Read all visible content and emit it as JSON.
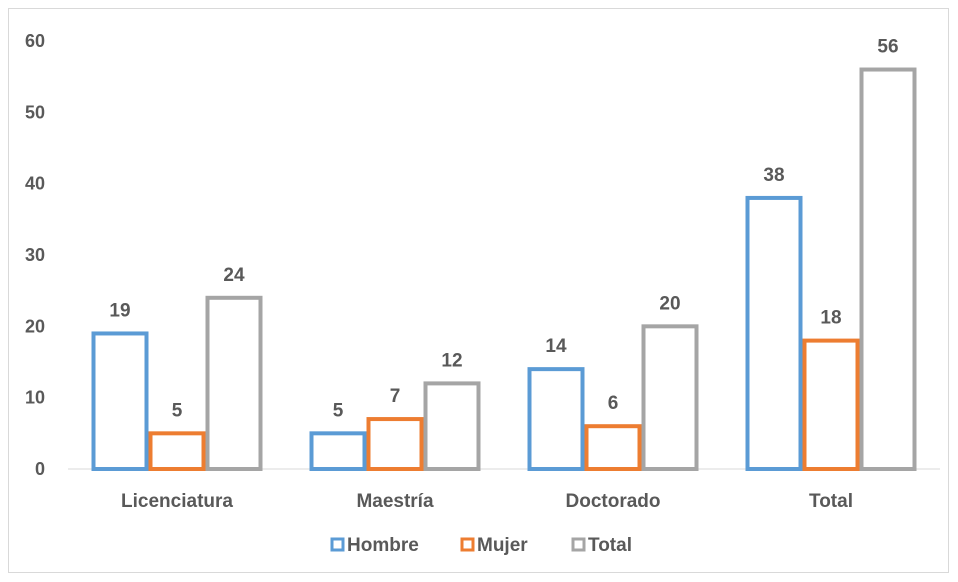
{
  "chart_data": {
    "type": "bar",
    "categories": [
      "Licenciatura",
      "Maestría",
      "Doctorado",
      "Total"
    ],
    "series": [
      {
        "name": "Hombre",
        "values": [
          19,
          5,
          14,
          38
        ],
        "color": "#5b9bd5"
      },
      {
        "name": "Mujer",
        "values": [
          5,
          7,
          6,
          18
        ],
        "color": "#ed7d31"
      },
      {
        "name": "Total",
        "values": [
          24,
          12,
          20,
          56
        ],
        "color": "#a5a5a5"
      }
    ],
    "ylim": [
      0,
      60
    ],
    "yticks": [
      0,
      10,
      20,
      30,
      40,
      50,
      60
    ],
    "grid": false,
    "legend_position": "bottom",
    "data_labels": true
  }
}
